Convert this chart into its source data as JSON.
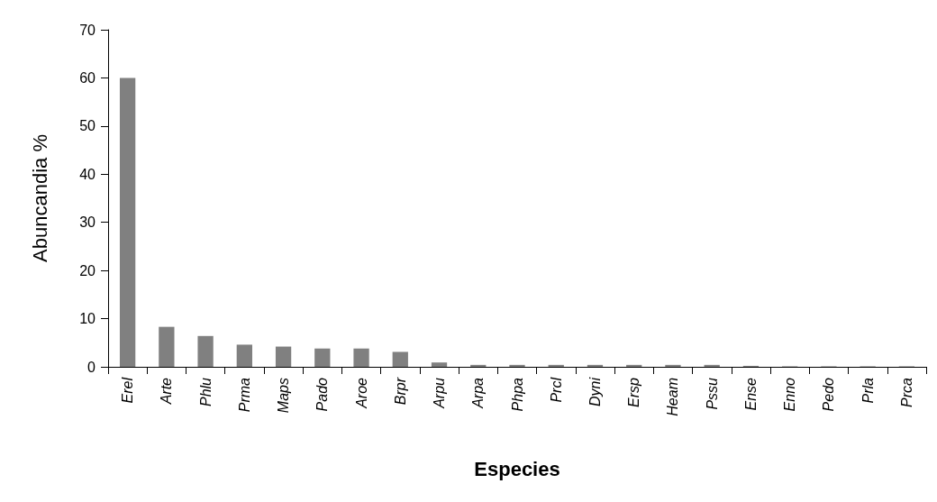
{
  "chart_data": {
    "type": "bar",
    "xlabel": "Especies",
    "ylabel": "Abuncandia %",
    "categories": [
      "Erel",
      "Arte",
      "Phlu",
      "Prma",
      "Maps",
      "Pado",
      "Aroe",
      "Brpr",
      "Arpu",
      "Arpa",
      "Phpa",
      "Prcl",
      "Dyni",
      "Ersp",
      "Heam",
      "Pssu",
      "Ense",
      "Enno",
      "Pedo",
      "Prla",
      "Prca"
    ],
    "values": [
      60,
      8.3,
      6.4,
      4.6,
      4.2,
      3.8,
      3.8,
      3.1,
      0.9,
      0.4,
      0.4,
      0.4,
      0.4,
      0.4,
      0.4,
      0.4,
      0.2,
      0.1,
      0.1,
      0.1,
      0.1
    ],
    "color": "#808080",
    "ylim": [
      0,
      70
    ],
    "yticks": [
      0,
      10,
      20,
      30,
      40,
      50,
      60,
      70
    ],
    "grid": false
  }
}
